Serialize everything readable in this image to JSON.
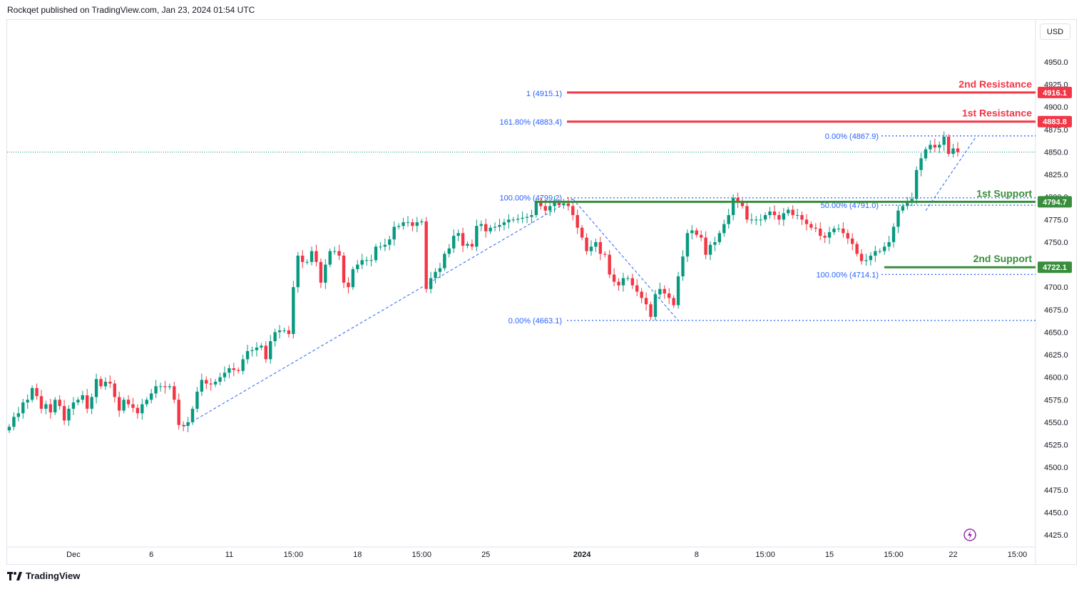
{
  "header": {
    "published": "Rockqet published on TradingView.com, Jan 23, 2024 01:54 UTC"
  },
  "currency_button": "USD",
  "footer": {
    "brand": "TradingView"
  },
  "chart_data": {
    "type": "candlestick",
    "title": "",
    "y_ticks": [
      4950.0,
      4925.0,
      4900.0,
      4875.0,
      4850.0,
      4825.0,
      4800.0,
      4775.0,
      4750.0,
      4725.0,
      4700.0,
      4675.0,
      4650.0,
      4625.0,
      4600.0,
      4575.0,
      4550.0,
      4525.0,
      4500.0,
      4475.0,
      4450.0,
      4425.0
    ],
    "ylim": [
      4413,
      5002
    ],
    "x_ticks": [
      {
        "label": "Dec",
        "i": 14,
        "bold": false
      },
      {
        "label": "6",
        "i": 31,
        "bold": false
      },
      {
        "label": "11",
        "i": 48,
        "bold": false
      },
      {
        "label": "15:00",
        "i": 62,
        "bold": false
      },
      {
        "label": "18",
        "i": 76,
        "bold": false
      },
      {
        "label": "15:00",
        "i": 90,
        "bold": false
      },
      {
        "label": "25",
        "i": 104,
        "bold": false
      },
      {
        "label": "2024",
        "i": 125,
        "bold": true
      },
      {
        "label": "8",
        "i": 150,
        "bold": false
      },
      {
        "label": "15:00",
        "i": 165,
        "bold": false
      },
      {
        "label": "15",
        "i": 179,
        "bold": false
      },
      {
        "label": "15:00",
        "i": 193,
        "bold": false
      },
      {
        "label": "22",
        "i": 206,
        "bold": false
      },
      {
        "label": "15:00",
        "i": 220,
        "bold": false
      }
    ],
    "last_price": 4850.0,
    "candles_close": [
      4545,
      4556,
      4560,
      4572,
      4575,
      4588,
      4579,
      4565,
      4570,
      4561,
      4575,
      4568,
      4552,
      4565,
      4572,
      4575,
      4580,
      4565,
      4578,
      4598,
      4590,
      4595,
      4593,
      4578,
      4563,
      4575,
      4570,
      4566,
      4560,
      4570,
      4575,
      4582,
      4590,
      4590,
      4589,
      4590,
      4575,
      4547,
      4546,
      4550,
      4565,
      4584,
      4597,
      4593,
      4592,
      4595,
      4600,
      4605,
      4610,
      4608,
      4607,
      4620,
      4629,
      4630,
      4633,
      4635,
      4620,
      4640,
      4650,
      4652,
      4652,
      4648,
      4700,
      4735,
      4728,
      4728,
      4740,
      4728,
      4705,
      4725,
      4740,
      4740,
      4735,
      4705,
      4700,
      4720,
      4725,
      4730,
      4730,
      4730,
      4745,
      4745,
      4747,
      4753,
      4767,
      4768,
      4772,
      4772,
      4768,
      4772,
      4773,
      4698,
      4710,
      4717,
      4721,
      4737,
      4743,
      4757,
      4760,
      4746,
      4748,
      4745,
      4768,
      4770,
      4762,
      4766,
      4767,
      4769,
      4772,
      4775,
      4775,
      4776,
      4777,
      4778,
      4780,
      4795,
      4790,
      4785,
      4790,
      4795,
      4791,
      4793,
      4790,
      4780,
      4766,
      4755,
      4740,
      4745,
      4750,
      4737,
      4736,
      4714,
      4706,
      4702,
      4710,
      4710,
      4702,
      4695,
      4688,
      4681,
      4667,
      4692,
      4698,
      4693,
      4688,
      4680,
      4712,
      4734,
      4760,
      4763,
      4758,
      4755,
      4736,
      4747,
      4750,
      4760,
      4770,
      4780,
      4799,
      4795,
      4790,
      4775,
      4775,
      4775,
      4775,
      4780,
      4784,
      4780,
      4775,
      4782,
      4786,
      4780,
      4780,
      4775,
      4770,
      4766,
      4765,
      4757,
      4755,
      4761,
      4765,
      4765,
      4760,
      4754,
      4748,
      4737,
      4729,
      4730,
      4735,
      4740,
      4740,
      4745,
      4750,
      4767,
      4785,
      4790,
      4795,
      4798,
      4830,
      4843,
      4853,
      4858,
      4855,
      4858,
      4867,
      4848,
      4854,
      4850
    ],
    "levels": [
      {
        "price": 4916.1,
        "color": "#f23645",
        "label": "2nd Resistance",
        "tag": "4916.1"
      },
      {
        "price": 4883.8,
        "color": "#f23645",
        "label": "1st Resistance",
        "tag": "4883.8"
      },
      {
        "price": 4794.7,
        "color": "#388e3c",
        "label": "1st Support",
        "tag": "4794.7"
      },
      {
        "price": 4722.1,
        "color": "#388e3c",
        "label": "2nd Support",
        "tag": "4722.1"
      }
    ],
    "fib_labels": [
      {
        "text": "1 (4915.1)",
        "price": 4915.1
      },
      {
        "text": "161.80% (4883.4)",
        "price": 4883.4
      },
      {
        "text": "100.00% (4799.2)",
        "price": 4799.2
      },
      {
        "text": "0.00% (4663.1)",
        "price": 4663.1
      },
      {
        "text": "0.00% (4867.9)",
        "price": 4867.9
      },
      {
        "text": "50.00% (4791.0)",
        "price": 4791.0
      },
      {
        "text": "100.00% (4714.1)",
        "price": 4714.1
      }
    ],
    "colors": {
      "up": "#089981",
      "down": "#f23645",
      "fib": "#2962ff",
      "fib_text": "#2962ff",
      "axis_text": "#131722",
      "grid": "#f0f3fa"
    }
  }
}
